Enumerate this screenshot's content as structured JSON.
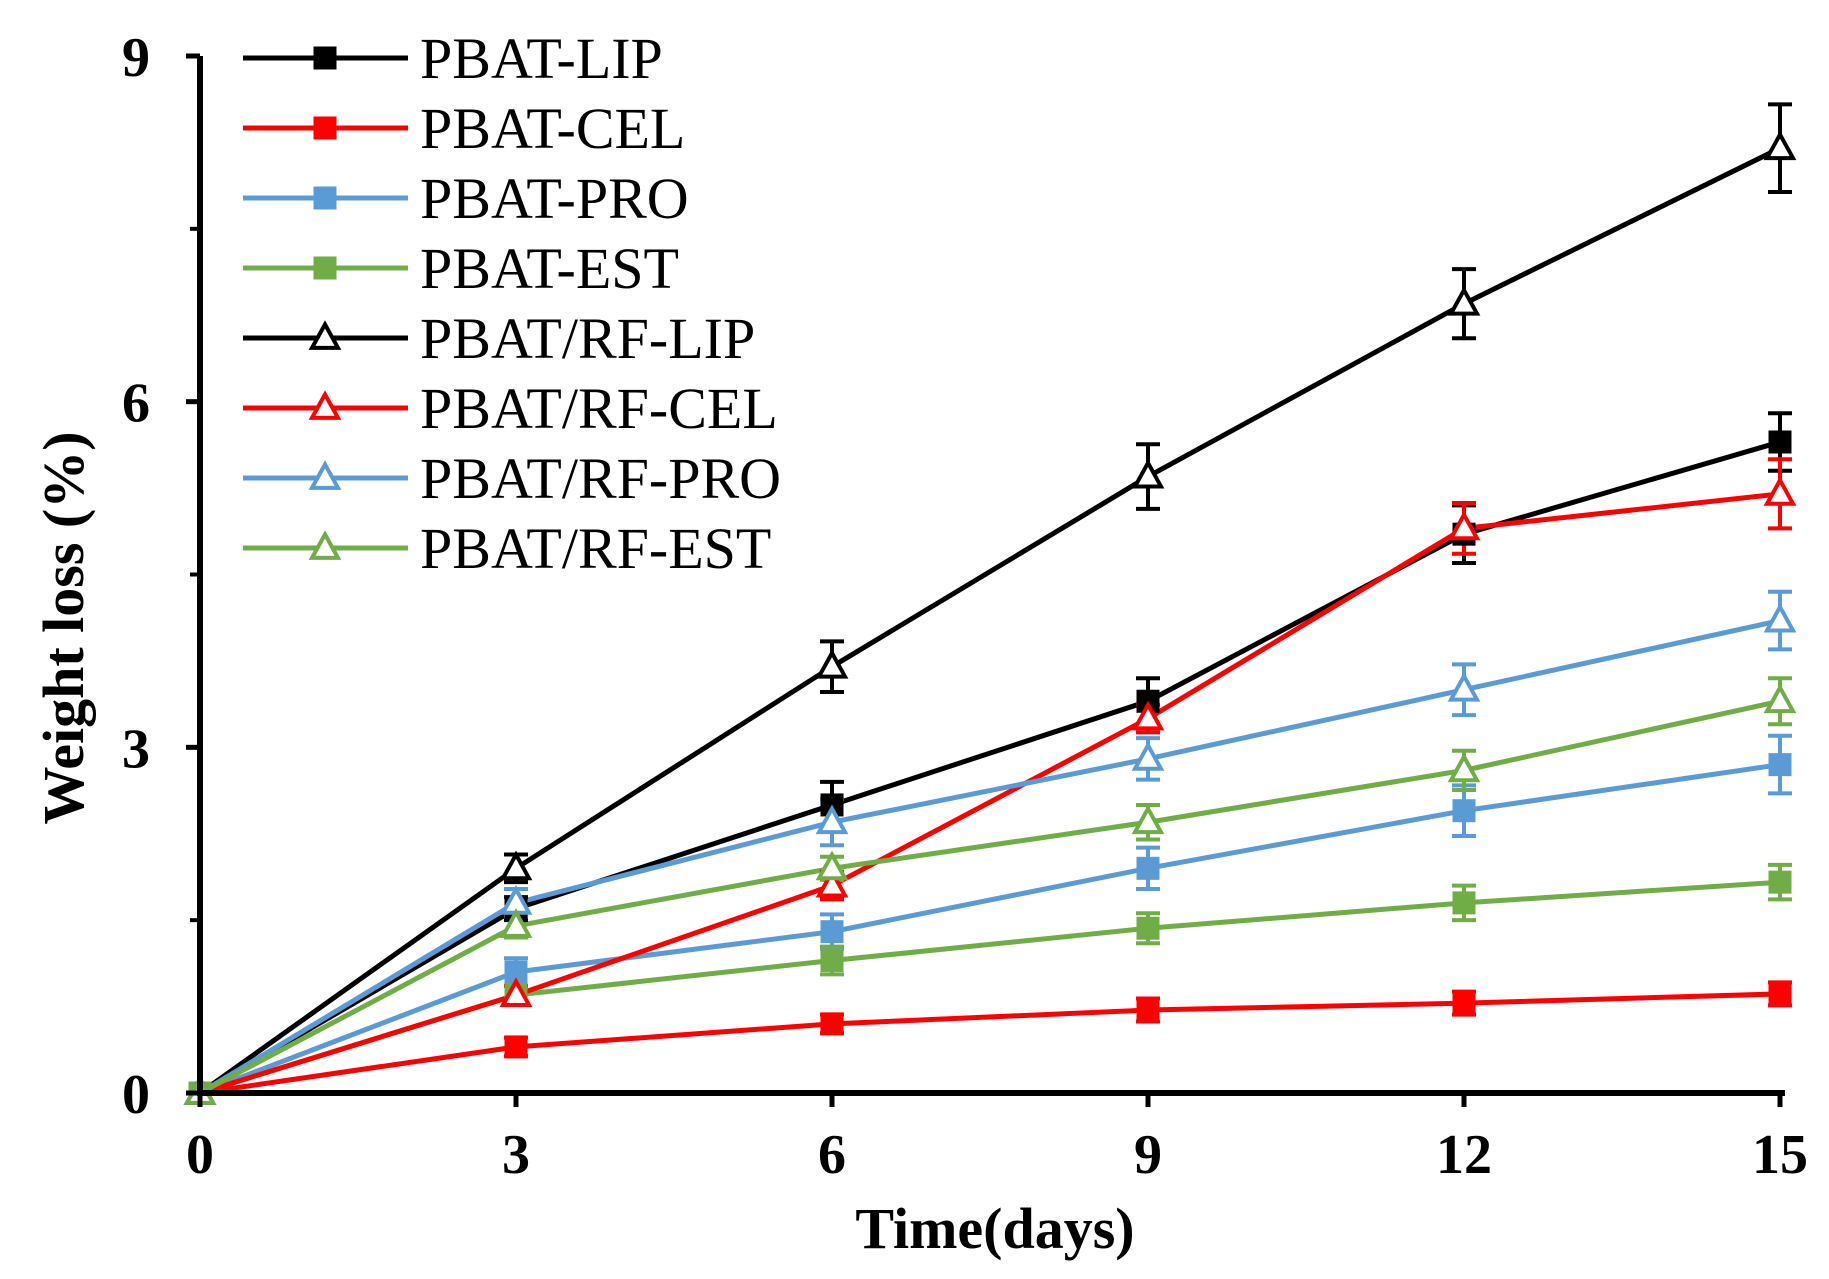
{
  "chart_data": {
    "type": "line",
    "title": "",
    "xlabel": "Time(days)",
    "ylabel": "Weight loss (%)",
    "xlim": [
      0,
      15
    ],
    "ylim": [
      0,
      9
    ],
    "x_ticks": [
      0,
      3,
      6,
      9,
      12,
      15
    ],
    "y_ticks": [
      0,
      3,
      6,
      9
    ],
    "y_minor_ticks": [
      1.5,
      4.5,
      7.5
    ],
    "grid": false,
    "legend_position": "top-left",
    "x": [
      0,
      3,
      6,
      9,
      12,
      15
    ],
    "series": [
      {
        "name": "PBAT-LIP",
        "color": "#000000",
        "marker": "square",
        "values": [
          0,
          1.6,
          2.5,
          3.4,
          4.85,
          5.65
        ],
        "errors": [
          0,
          0.1,
          0.2,
          0.2,
          0.25,
          0.25
        ]
      },
      {
        "name": "PBAT-CEL",
        "color": "#ff0000",
        "marker": "square",
        "values": [
          0,
          0.4,
          0.6,
          0.72,
          0.78,
          0.86
        ],
        "errors": [
          0,
          0.08,
          0.08,
          0.1,
          0.1,
          0.1
        ]
      },
      {
        "name": "PBAT-PRO",
        "color": "#5b9bd5",
        "marker": "square",
        "values": [
          0,
          1.05,
          1.4,
          1.95,
          2.45,
          2.85
        ],
        "errors": [
          0,
          0.12,
          0.15,
          0.18,
          0.22,
          0.25
        ]
      },
      {
        "name": "PBAT-EST",
        "color": "#70ad47",
        "marker": "square",
        "values": [
          0,
          0.85,
          1.15,
          1.43,
          1.65,
          1.83
        ],
        "errors": [
          0,
          0.08,
          0.12,
          0.13,
          0.15,
          0.15
        ]
      },
      {
        "name": "PBAT/RF-LIP",
        "color": "#000000",
        "marker": "triangle",
        "values": [
          0,
          1.95,
          3.7,
          5.35,
          6.85,
          8.2
        ],
        "errors": [
          0,
          0.12,
          0.22,
          0.28,
          0.3,
          0.38
        ]
      },
      {
        "name": "PBAT/RF-CEL",
        "color": "#ff0000",
        "marker": "triangle",
        "values": [
          0,
          0.85,
          1.8,
          3.25,
          4.9,
          5.2
        ],
        "errors": [
          0,
          0.08,
          0.12,
          0.12,
          0.22,
          0.3
        ]
      },
      {
        "name": "PBAT/RF-PRO",
        "color": "#5b9bd5",
        "marker": "triangle",
        "values": [
          0,
          1.65,
          2.35,
          2.9,
          3.5,
          4.1
        ],
        "errors": [
          0,
          0.12,
          0.2,
          0.18,
          0.22,
          0.25
        ]
      },
      {
        "name": "PBAT/RF-EST",
        "color": "#70ad47",
        "marker": "triangle",
        "values": [
          0,
          1.45,
          1.95,
          2.35,
          2.8,
          3.4
        ],
        "errors": [
          0,
          0.1,
          0.1,
          0.15,
          0.17,
          0.2
        ]
      }
    ]
  }
}
